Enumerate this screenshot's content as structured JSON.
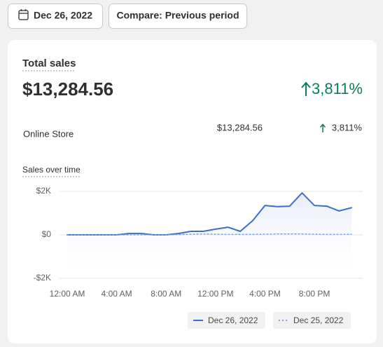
{
  "header": {
    "date_button": "Dec 26, 2022",
    "compare_button": "Compare: Previous period"
  },
  "card": {
    "title": "Total sales",
    "total": "$13,284.56",
    "change": "3,811%",
    "rows": [
      {
        "channel": "Online Store",
        "amount": "$13,284.56",
        "change": "3,811%"
      }
    ]
  },
  "chart_data": {
    "type": "line",
    "title": "Sales over time",
    "categories": [
      "12:00 AM",
      null,
      null,
      null,
      "4:00 AM",
      null,
      null,
      null,
      "8:00 AM",
      null,
      null,
      null,
      "12:00 PM",
      null,
      null,
      null,
      "4:00 PM",
      null,
      null,
      null,
      "8:00 PM",
      null,
      null,
      null
    ],
    "series": [
      {
        "name": "Dec 26, 2022",
        "color": "#3b6fcc",
        "style": "solid",
        "values": [
          0,
          0,
          0,
          0,
          0,
          60,
          60,
          0,
          0,
          60,
          160,
          160,
          260,
          350,
          160,
          650,
          1350,
          1300,
          1320,
          1930,
          1350,
          1320,
          1100,
          1250
        ]
      },
      {
        "name": "Dec 25, 2022",
        "color": "#7fa3dd",
        "style": "dotted",
        "values": [
          0,
          0,
          0,
          0,
          0,
          0,
          0,
          0,
          0,
          10,
          30,
          40,
          30,
          20,
          20,
          20,
          30,
          40,
          40,
          40,
          30,
          20,
          20,
          30
        ]
      }
    ],
    "ylim": [
      -2000,
      2000
    ],
    "yticks": [
      {
        "value": -2000,
        "label": "-$2K"
      },
      {
        "value": 0,
        "label": "$0"
      },
      {
        "value": 2000,
        "label": "$2K"
      }
    ],
    "grid": true
  }
}
